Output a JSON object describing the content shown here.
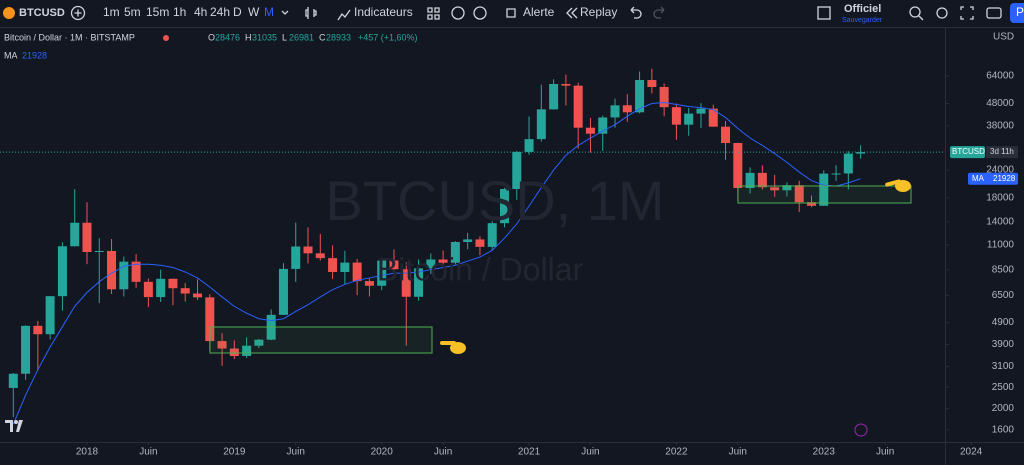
{
  "toolbar": {
    "symbol": "BTCUSD",
    "intervals": [
      "1m",
      "5m",
      "15m",
      "1h",
      "4h",
      "24h",
      "D",
      "W",
      "M"
    ],
    "indicators": "Indicateurs",
    "alert": "Alerte",
    "replay": "Replay",
    "layout_name": "Officiel",
    "save": "Sauvegarder",
    "profile": "P"
  },
  "legend": {
    "title": "Bitcoin / Dollar · 1M · BITSTAMP",
    "ohlc_labels": [
      "O",
      "H",
      "L",
      "C"
    ],
    "change": "+457 (+1,60%)",
    "ma_label": "MA"
  },
  "watermark": {
    "symbol": "BTCUSD, 1M",
    "name": "Bitcoin / Dollar"
  },
  "chart": {
    "type": "candlestick",
    "currency": "USD",
    "log_scale": true,
    "up_color": "#26a69a",
    "down_color": "#ef5350",
    "x": [
      "2017-07",
      "2017-08",
      "2017-09",
      "2017-10",
      "2017-11",
      "2017-12",
      "2018-01",
      "2018-02",
      "2018-03",
      "2018-04",
      "2018-05",
      "2018-06",
      "2018-07",
      "2018-08",
      "2018-09",
      "2018-10",
      "2018-11",
      "2018-12",
      "2019-01",
      "2019-02",
      "2019-03",
      "2019-04",
      "2019-05",
      "2019-06",
      "2019-07",
      "2019-08",
      "2019-09",
      "2019-10",
      "2019-11",
      "2019-12",
      "2020-01",
      "2020-02",
      "2020-03",
      "2020-04",
      "2020-05",
      "2020-06",
      "2020-07",
      "2020-08",
      "2020-09",
      "2020-10",
      "2020-11",
      "2020-12",
      "2021-01",
      "2021-02",
      "2021-03",
      "2021-04",
      "2021-05",
      "2021-06",
      "2021-07",
      "2021-08",
      "2021-09",
      "2021-10",
      "2021-11",
      "2021-12",
      "2022-01",
      "2022-02",
      "2022-03",
      "2022-04",
      "2022-05",
      "2022-06",
      "2022-07",
      "2022-08",
      "2022-09",
      "2022-10",
      "2022-11",
      "2022-12",
      "2023-01",
      "2023-02",
      "2023-03",
      "2023-04"
    ],
    "open": [
      2480,
      2875,
      4735,
      4340,
      6450,
      10850,
      13860,
      10220,
      10330,
      6930,
      9240,
      7490,
      6390,
      7730,
      7010,
      6630,
      6370,
      4040,
      3740,
      3460,
      3850,
      4100,
      5310,
      8570,
      10820,
      10080,
      9590,
      8300,
      9150,
      7550,
      7190,
      9350,
      8540,
      6410,
      8620,
      9450,
      9140,
      11340,
      11650,
      10780,
      13800,
      19700,
      28990,
      33110,
      45160,
      58800,
      57800,
      37300,
      35040,
      41500,
      47100,
      43800,
      61300,
      57000,
      46200,
      38500,
      43200,
      45500,
      37700,
      31800,
      19900,
      23300,
      20050,
      19430,
      20500,
      17170,
      16540,
      23130,
      23150,
      28476
    ],
    "high": [
      2900,
      4760,
      4980,
      6450,
      11300,
      19670,
      17180,
      11790,
      11700,
      9750,
      10000,
      7760,
      8500,
      7750,
      7400,
      7680,
      6590,
      4390,
      4070,
      4200,
      4130,
      5620,
      9100,
      13880,
      13200,
      12330,
      10950,
      10350,
      9510,
      7760,
      9580,
      10500,
      9190,
      9460,
      10070,
      10380,
      11440,
      12470,
      12050,
      14100,
      19900,
      29300,
      41950,
      58350,
      61790,
      64900,
      59600,
      41300,
      42300,
      50500,
      52900,
      67000,
      69000,
      59100,
      47990,
      45800,
      48200,
      47400,
      40000,
      31900,
      24700,
      25200,
      22800,
      21100,
      21480,
      18400,
      23950,
      25250,
      29190,
      31035
    ],
    "low": [
      1830,
      2700,
      2970,
      4110,
      5550,
      10830,
      9000,
      6000,
      6600,
      6430,
      7030,
      5760,
      6070,
      5880,
      6100,
      6200,
      3650,
      3120,
      3350,
      3390,
      3760,
      4080,
      5300,
      7480,
      9070,
      9350,
      7720,
      7300,
      6520,
      6430,
      6870,
      8450,
      3850,
      6160,
      8120,
      8910,
      8990,
      10520,
      9880,
      10370,
      13200,
      17600,
      28130,
      32300,
      45000,
      47000,
      30000,
      28800,
      29300,
      37300,
      39600,
      43300,
      53300,
      42000,
      32900,
      34300,
      37200,
      37700,
      26700,
      17600,
      18800,
      19600,
      18150,
      18200,
      15500,
      16300,
      16500,
      21400,
      19600,
      26981
    ],
    "close": [
      2875,
      4735,
      4340,
      6450,
      10850,
      13860,
      10220,
      10330,
      6930,
      9240,
      7490,
      6390,
      7730,
      7010,
      6630,
      6370,
      4040,
      3740,
      3460,
      3850,
      4100,
      5310,
      8570,
      10820,
      10080,
      9590,
      8300,
      9150,
      7550,
      7190,
      9350,
      8540,
      6410,
      8620,
      9450,
      9140,
      11340,
      11650,
      10780,
      13800,
      19700,
      28990,
      33110,
      45160,
      58800,
      57800,
      37300,
      35040,
      41500,
      47100,
      43800,
      61300,
      57000,
      46200,
      38500,
      43200,
      45500,
      37700,
      31800,
      19900,
      23300,
      20050,
      19430,
      20500,
      17170,
      16540,
      23130,
      23150,
      28476,
      28933
    ],
    "ma": {
      "name": "MA",
      "color": "#2962ff",
      "values": [
        1700,
        2300,
        3000,
        3800,
        4700,
        5800,
        6700,
        7500,
        8200,
        8800,
        9000,
        9000,
        8900,
        8700,
        8300,
        7800,
        7100,
        6400,
        5800,
        5400,
        5100,
        5000,
        5100,
        5500,
        5900,
        6400,
        6900,
        7300,
        7600,
        7800,
        8000,
        8200,
        8200,
        8300,
        8500,
        8700,
        8900,
        9300,
        9700,
        10400,
        11800,
        13700,
        16500,
        20000,
        24000,
        28000,
        31000,
        33500,
        36000,
        38500,
        42000,
        45500,
        48000,
        48500,
        47500,
        46500,
        46000,
        45000,
        41500,
        37000,
        33500,
        31000,
        28500,
        26000,
        23500,
        21500,
        20500,
        20300,
        21000,
        21928
      ]
    },
    "ylim": [
      1442,
      103200
    ],
    "yticks": [
      64000,
      48000,
      38000,
      24000,
      18000,
      14000,
      11000,
      8500,
      6500,
      4900,
      3900,
      3100,
      2500,
      2000,
      1600
    ],
    "xticks": [
      {
        "value": "2018-01",
        "label": "2018"
      },
      {
        "value": "2018-06",
        "label": "Juin"
      },
      {
        "value": "2019-01",
        "label": "2019"
      },
      {
        "value": "2019-06",
        "label": "Juin"
      },
      {
        "value": "2020-01",
        "label": "2020"
      },
      {
        "value": "2020-06",
        "label": "Juin"
      },
      {
        "value": "2021-01",
        "label": "2021"
      },
      {
        "value": "2021-06",
        "label": "Juin"
      },
      {
        "value": "2022-01",
        "label": "2022"
      },
      {
        "value": "2022-06",
        "label": "Juin"
      },
      {
        "value": "2023-01",
        "label": "2023"
      },
      {
        "value": "2023-06",
        "label": "Juin"
      },
      {
        "value": "2024-01",
        "label": "2024"
      }
    ],
    "last_tag": {
      "symbol": "BTCUSD",
      "countdown": "3d 11h"
    }
  }
}
